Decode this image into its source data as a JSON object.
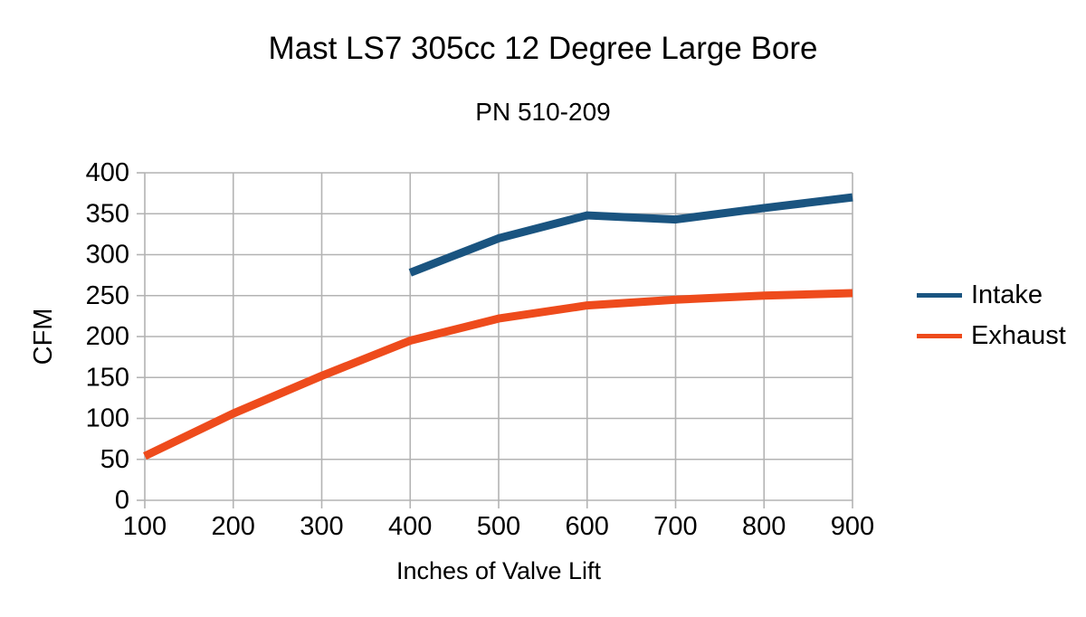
{
  "chart_data": {
    "type": "line",
    "title": "Mast LS7 305cc 12 Degree Large Bore",
    "subtitle": "PN 510-209",
    "xlabel": "Inches of Valve Lift",
    "ylabel": "CFM",
    "xlim": [
      100,
      900
    ],
    "ylim": [
      0,
      400
    ],
    "x_ticks": [
      100,
      200,
      300,
      400,
      500,
      600,
      700,
      800,
      900
    ],
    "y_ticks": [
      0,
      50,
      100,
      150,
      200,
      250,
      300,
      350,
      400
    ],
    "grid": true,
    "grid_color": "#b3b3b3",
    "background_color": "#ffffff",
    "text_color": "#000000",
    "legend_position": "right",
    "series": [
      {
        "name": "Intake",
        "color": "#1A5480",
        "x": [
          400,
          500,
          600,
          700,
          800,
          900
        ],
        "values": [
          278,
          320,
          348,
          343,
          357,
          370
        ]
      },
      {
        "name": "Exhaust",
        "color": "#EE4B1C",
        "x": [
          100,
          200,
          300,
          400,
          500,
          600,
          700,
          800,
          900
        ],
        "values": [
          54,
          106,
          152,
          195,
          222,
          238,
          245,
          250,
          253
        ]
      }
    ]
  }
}
